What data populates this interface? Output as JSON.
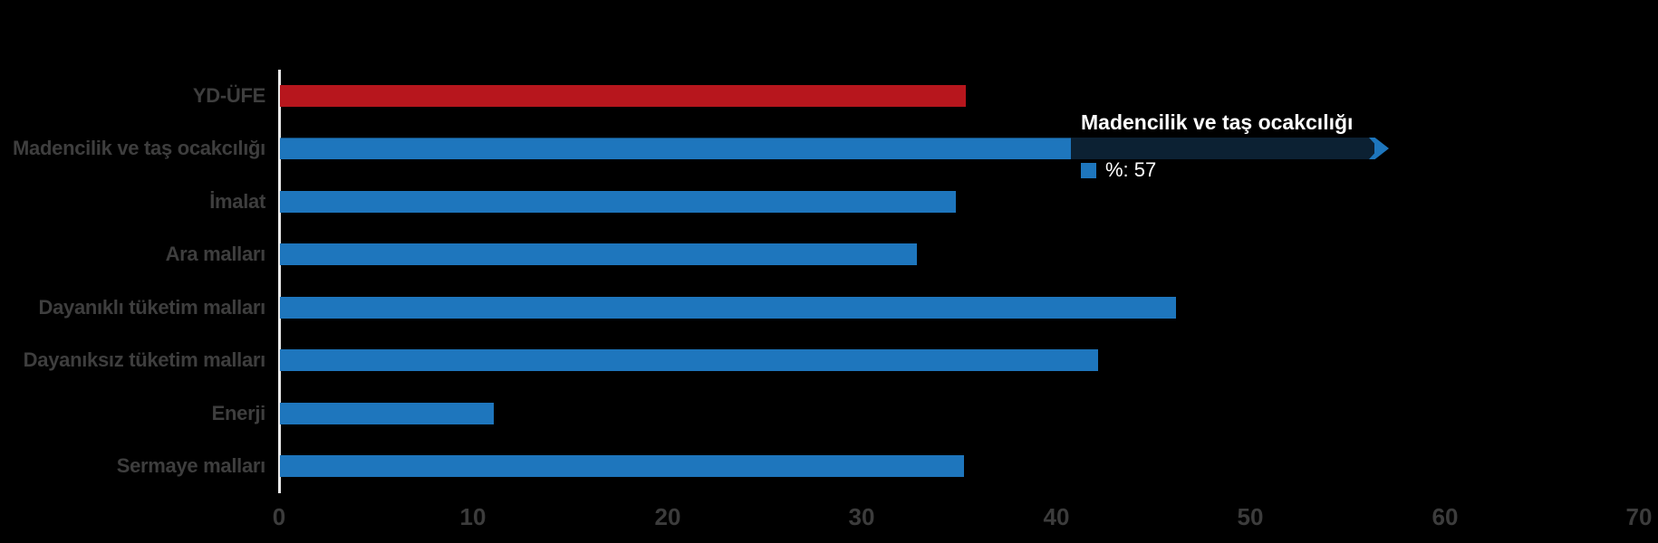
{
  "colors": {
    "background": "#000000",
    "bar_blue": "#1e76bd",
    "bar_red": "#b7161d",
    "category_label": "#3e3e3e",
    "tick_label": "#3c3c3c",
    "axis_line": "#e9e9e9",
    "tooltip_band": "#0c2133",
    "tooltip_text": "#ffffff"
  },
  "chart_data": {
    "type": "bar",
    "orientation": "horizontal",
    "categories": [
      "YD-ÜFE",
      "Madencilik ve taş ocakcılığı",
      "İmalat",
      "Ara malları",
      "Dayanıklı tüketim malları",
      "Dayanıksız tüketim malları",
      "Enerji",
      "Sermaye malları"
    ],
    "values": [
      35.3,
      57,
      34.8,
      32.8,
      46.1,
      42.1,
      11,
      35.2
    ],
    "bar_colors": [
      "#b7161d",
      "#1e76bd",
      "#1e76bd",
      "#1e76bd",
      "#1e76bd",
      "#1e76bd",
      "#1e76bd",
      "#1e76bd"
    ],
    "highlighted_index": 1,
    "xlim": [
      0,
      70
    ],
    "x_ticks": [
      "0",
      "10",
      "20",
      "30",
      "40",
      "50",
      "60",
      "70"
    ],
    "grid": false,
    "legend": false,
    "ylabel": "",
    "xlabel": ""
  },
  "tooltip": {
    "title": "Madencilik ve taş ocakcılığı",
    "series_label": "%",
    "value": 57,
    "text": "%: 57"
  }
}
